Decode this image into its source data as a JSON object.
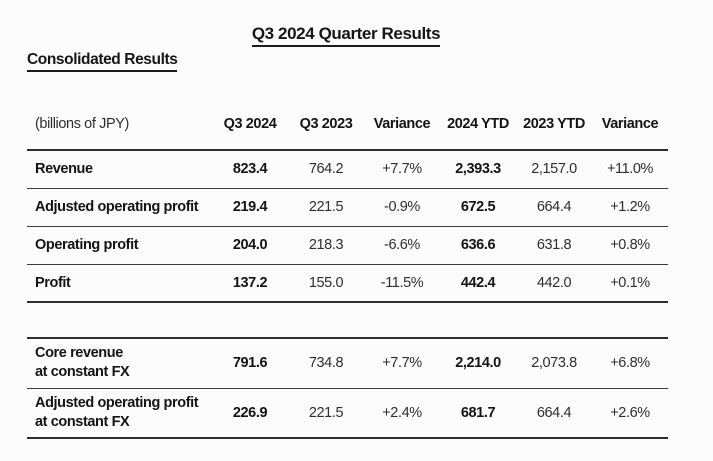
{
  "header": {
    "title": "Q3 2024 Quarter Results",
    "subtitle": "Consolidated Results"
  },
  "table": {
    "unit_label": "(billions of JPY)",
    "columns": [
      "Q3 2024",
      "Q3 2023",
      "Variance",
      "2024 YTD",
      "2023 YTD",
      "Variance"
    ],
    "rows": [
      {
        "label": "Revenue",
        "values": [
          "823.4",
          "764.2",
          "+7.7%",
          "2,393.3",
          "2,157.0",
          "+11.0%"
        ]
      },
      {
        "label": "Adjusted operating profit",
        "values": [
          "219.4",
          "221.5",
          "-0.9%",
          "672.5",
          "664.4",
          "+1.2%"
        ]
      },
      {
        "label": "Operating profit",
        "values": [
          "204.0",
          "218.3",
          "-6.6%",
          "636.6",
          "631.8",
          "+0.8%"
        ]
      },
      {
        "label": "Profit",
        "values": [
          "137.2",
          "155.0",
          "-11.5%",
          "442.4",
          "442.0",
          "+0.1%"
        ]
      }
    ]
  },
  "fx_table": {
    "rows": [
      {
        "label_lines": [
          "Core revenue",
          "at constant FX"
        ],
        "values": [
          "791.6",
          "734.8",
          "+7.7%",
          "2,214.0",
          "2,073.8",
          "+6.8%"
        ]
      },
      {
        "label_lines": [
          "Adjusted operating profit",
          "at constant FX"
        ],
        "values": [
          "226.9",
          "221.5",
          "+2.4%",
          "681.7",
          "664.4",
          "+2.6%"
        ]
      }
    ]
  },
  "colors": {
    "text": "#222222",
    "bold_text": "#141414",
    "rule_heavy": "#2d2d2d",
    "rule_light": "#3c3c3c",
    "background": "#fcfcfc"
  }
}
